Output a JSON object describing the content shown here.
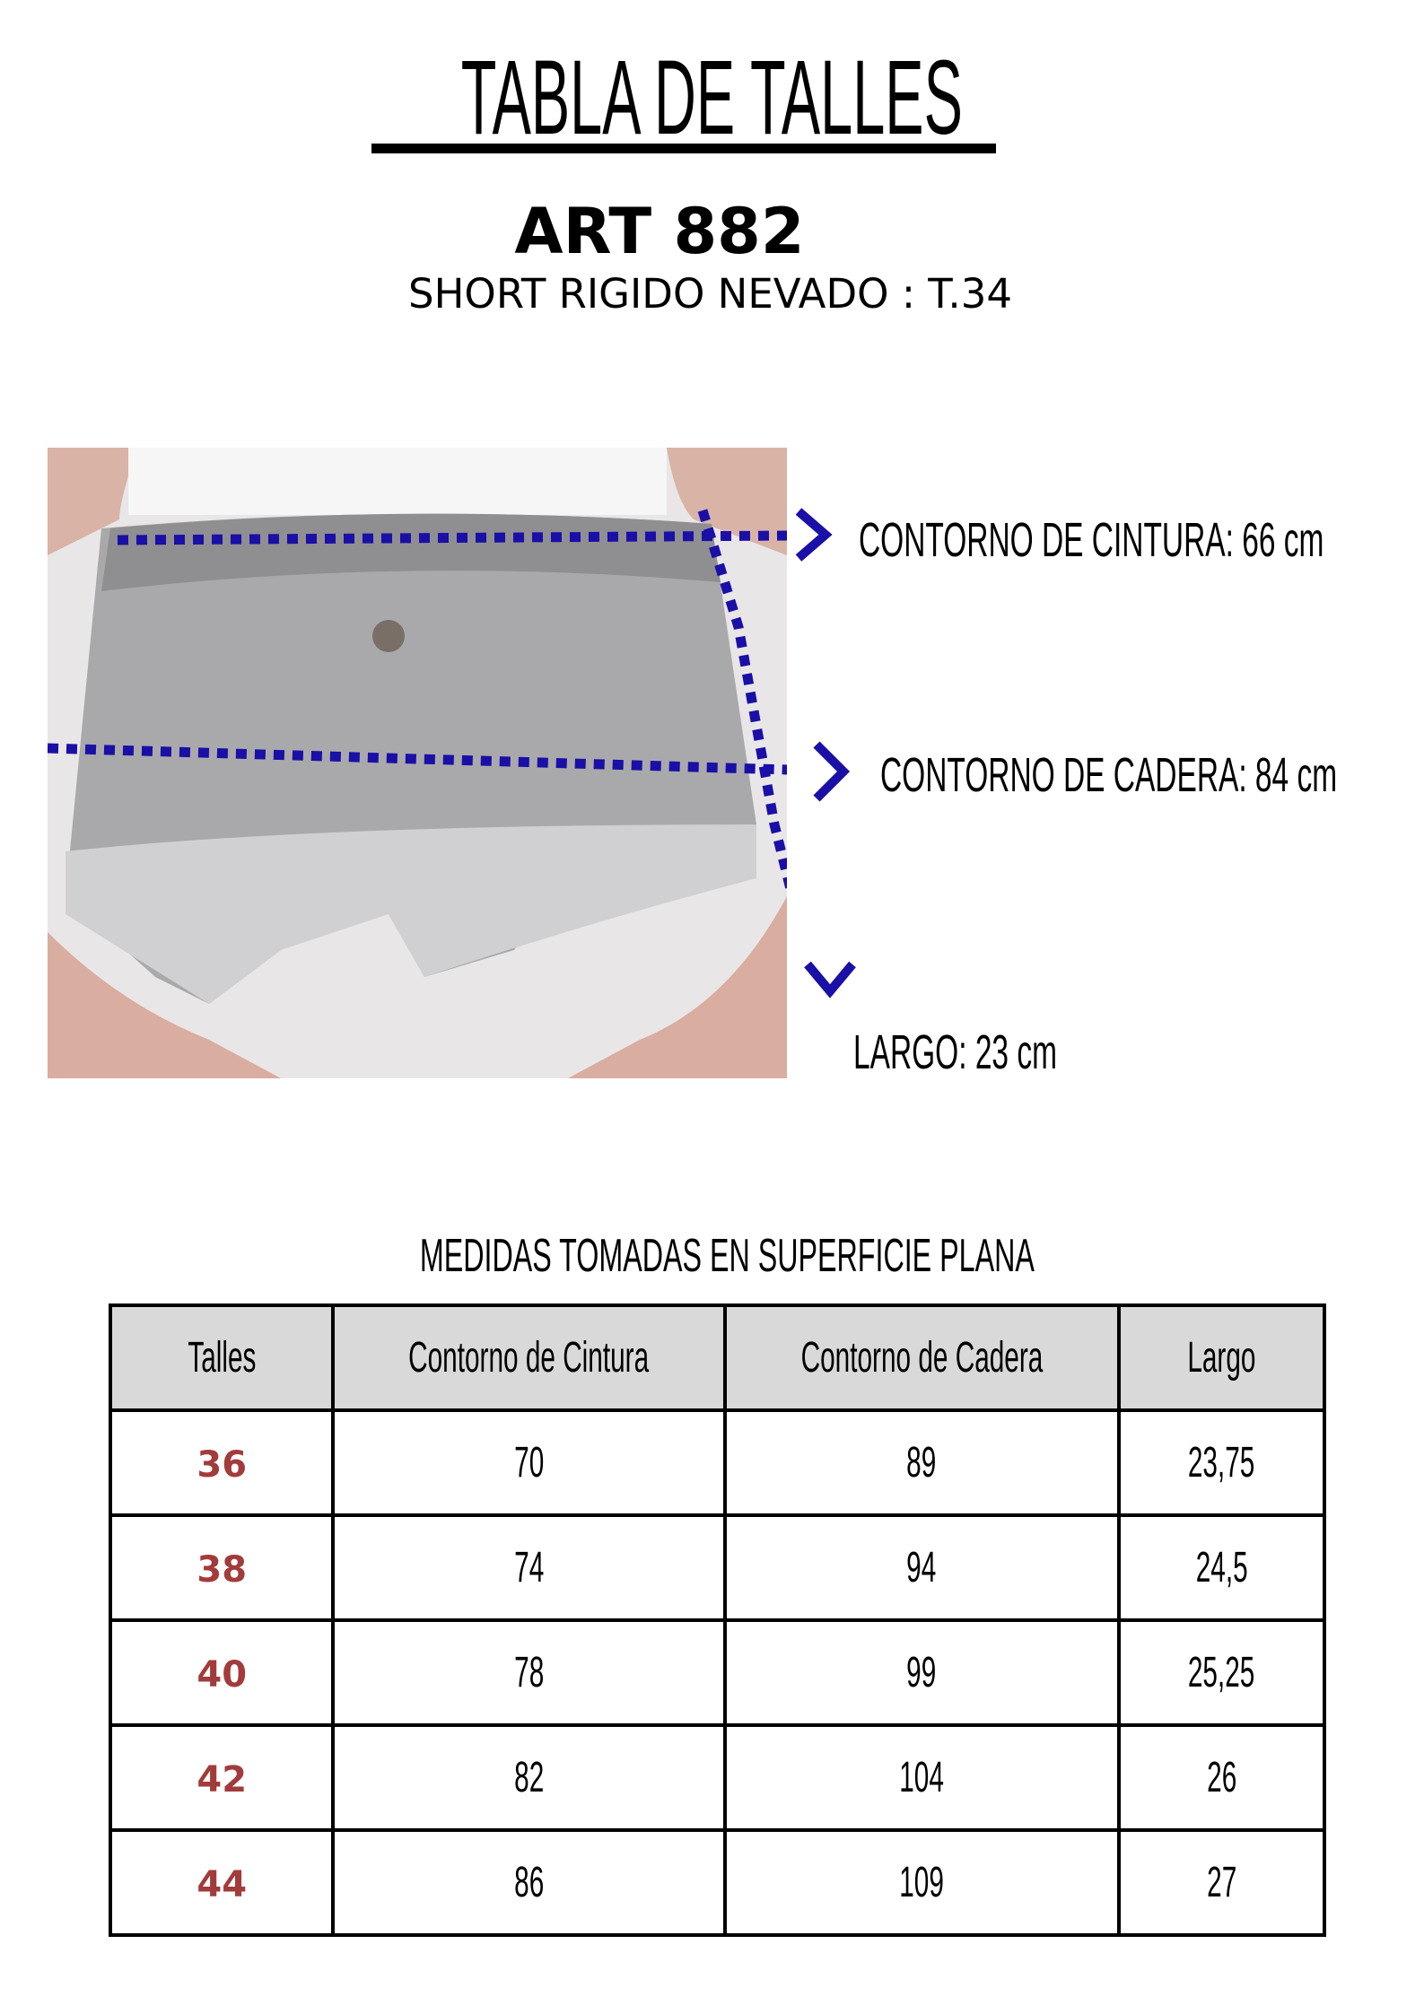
{
  "header": {
    "title": "TABLA DE TALLES",
    "article": "ART 882",
    "subtitle": "SHORT RIGIDO NEVADO : T.34"
  },
  "measurements": {
    "waist": "CONTORNO DE CINTURA: 66 cm",
    "hip": "CONTORNO DE CADERA: 84 cm",
    "length": "LARGO: 23 cm"
  },
  "colors": {
    "arrow": "#1a0fa6",
    "size_text": "#a23b3b",
    "header_bg": "#d9d9d9"
  },
  "table": {
    "caption": "MEDIDAS TOMADAS EN SUPERFICIE PLANA",
    "headers": [
      "Talles",
      "Contorno de Cintura",
      "Contorno de Cadera",
      "Largo"
    ],
    "rows": [
      [
        "36",
        "70",
        "89",
        "23,75"
      ],
      [
        "38",
        "74",
        "94",
        "24,5"
      ],
      [
        "40",
        "78",
        "99",
        "25,25"
      ],
      [
        "42",
        "82",
        "104",
        "26"
      ],
      [
        "44",
        "86",
        "109",
        "27"
      ]
    ]
  }
}
